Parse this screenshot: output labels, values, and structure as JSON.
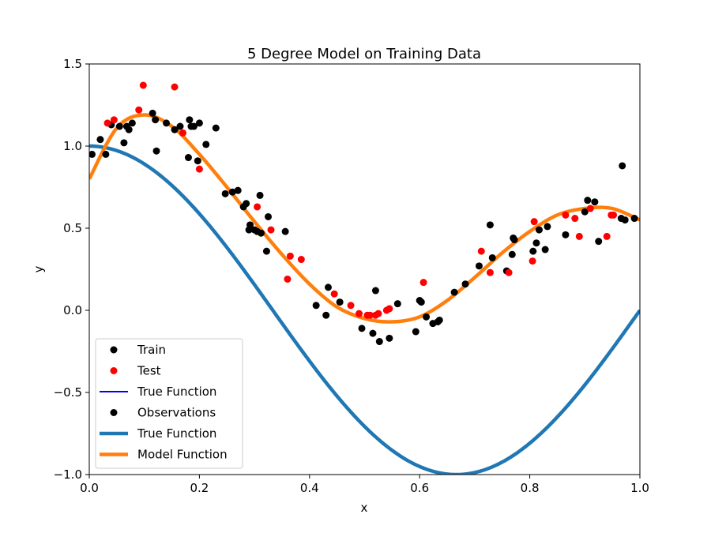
{
  "chart_data": {
    "type": "scatter",
    "title": "5 Degree Model on Training Data",
    "xlabel": "x",
    "ylabel": "y",
    "xlim": [
      0.0,
      1.0
    ],
    "ylim": [
      -1.0,
      1.5
    ],
    "xticks": [
      0.0,
      0.2,
      0.4,
      0.6,
      0.8,
      1.0
    ],
    "xtick_labels": [
      "0.0",
      "0.2",
      "0.4",
      "0.6",
      "0.8",
      "1.0"
    ],
    "yticks": [
      -1.0,
      -0.5,
      0.0,
      0.5,
      1.0,
      1.5
    ],
    "ytick_labels": [
      "−1.0",
      "−0.5",
      "0.0",
      "0.5",
      "1.0",
      "1.5"
    ],
    "grid": false,
    "legend_position": "lower-left",
    "legend": [
      {
        "label": "Train",
        "kind": "marker",
        "color": "#000000"
      },
      {
        "label": "Test",
        "kind": "marker",
        "color": "#ff0000"
      },
      {
        "label": "True Function",
        "kind": "thin-line",
        "color": "#0000ff"
      },
      {
        "label": "Observations",
        "kind": "marker",
        "color": "#000000"
      },
      {
        "label": "True Function",
        "kind": "thick-line",
        "color": "#1f77b4"
      },
      {
        "label": "Model Function",
        "kind": "thick-line",
        "color": "#ff7f0e"
      }
    ],
    "series": [
      {
        "name": "Train",
        "color": "#000000",
        "points": [
          [
            0.005,
            0.95
          ],
          [
            0.02,
            1.04
          ],
          [
            0.03,
            0.95
          ],
          [
            0.04,
            1.13
          ],
          [
            0.055,
            1.12
          ],
          [
            0.063,
            1.02
          ],
          [
            0.068,
            1.12
          ],
          [
            0.072,
            1.1
          ],
          [
            0.078,
            1.14
          ],
          [
            0.115,
            1.2
          ],
          [
            0.12,
            1.16
          ],
          [
            0.122,
            0.97
          ],
          [
            0.14,
            1.14
          ],
          [
            0.155,
            1.1
          ],
          [
            0.165,
            1.12
          ],
          [
            0.18,
            0.93
          ],
          [
            0.182,
            1.16
          ],
          [
            0.185,
            1.12
          ],
          [
            0.19,
            1.12
          ],
          [
            0.197,
            0.91
          ],
          [
            0.2,
            1.14
          ],
          [
            0.212,
            1.01
          ],
          [
            0.23,
            1.11
          ],
          [
            0.247,
            0.71
          ],
          [
            0.26,
            0.72
          ],
          [
            0.27,
            0.73
          ],
          [
            0.28,
            0.63
          ],
          [
            0.285,
            0.65
          ],
          [
            0.29,
            0.49
          ],
          [
            0.292,
            0.52
          ],
          [
            0.3,
            0.49
          ],
          [
            0.305,
            0.48
          ],
          [
            0.31,
            0.7
          ],
          [
            0.312,
            0.47
          ],
          [
            0.322,
            0.36
          ],
          [
            0.325,
            0.57
          ],
          [
            0.356,
            0.48
          ],
          [
            0.412,
            0.03
          ],
          [
            0.43,
            -0.03
          ],
          [
            0.434,
            0.14
          ],
          [
            0.455,
            0.05
          ],
          [
            0.495,
            -0.11
          ],
          [
            0.515,
            -0.14
          ],
          [
            0.52,
            0.12
          ],
          [
            0.527,
            -0.19
          ],
          [
            0.545,
            -0.17
          ],
          [
            0.56,
            0.04
          ],
          [
            0.593,
            -0.13
          ],
          [
            0.6,
            0.06
          ],
          [
            0.603,
            0.05
          ],
          [
            0.612,
            -0.04
          ],
          [
            0.624,
            -0.08
          ],
          [
            0.633,
            -0.07
          ],
          [
            0.636,
            -0.06
          ],
          [
            0.663,
            0.11
          ],
          [
            0.683,
            0.16
          ],
          [
            0.708,
            0.27
          ],
          [
            0.728,
            0.52
          ],
          [
            0.732,
            0.32
          ],
          [
            0.758,
            0.24
          ],
          [
            0.768,
            0.34
          ],
          [
            0.77,
            0.44
          ],
          [
            0.772,
            0.43
          ],
          [
            0.806,
            0.36
          ],
          [
            0.812,
            0.41
          ],
          [
            0.817,
            0.49
          ],
          [
            0.828,
            0.37
          ],
          [
            0.832,
            0.51
          ],
          [
            0.865,
            0.46
          ],
          [
            0.9,
            0.6
          ],
          [
            0.905,
            0.67
          ],
          [
            0.918,
            0.66
          ],
          [
            0.925,
            0.42
          ],
          [
            0.966,
            0.56
          ],
          [
            0.968,
            0.88
          ],
          [
            0.973,
            0.55
          ],
          [
            0.99,
            0.56
          ]
        ]
      },
      {
        "name": "Test",
        "color": "#ff0000",
        "points": [
          [
            0.033,
            1.14
          ],
          [
            0.045,
            1.16
          ],
          [
            0.09,
            1.22
          ],
          [
            0.098,
            1.37
          ],
          [
            0.155,
            1.36
          ],
          [
            0.17,
            1.08
          ],
          [
            0.2,
            0.86
          ],
          [
            0.305,
            0.63
          ],
          [
            0.33,
            0.49
          ],
          [
            0.36,
            0.19
          ],
          [
            0.365,
            0.33
          ],
          [
            0.385,
            0.31
          ],
          [
            0.445,
            0.1
          ],
          [
            0.475,
            0.03
          ],
          [
            0.49,
            -0.02
          ],
          [
            0.505,
            -0.03
          ],
          [
            0.51,
            -0.03
          ],
          [
            0.52,
            -0.03
          ],
          [
            0.525,
            -0.02
          ],
          [
            0.54,
            0.0
          ],
          [
            0.545,
            0.01
          ],
          [
            0.607,
            0.17
          ],
          [
            0.712,
            0.36
          ],
          [
            0.728,
            0.23
          ],
          [
            0.762,
            0.23
          ],
          [
            0.805,
            0.3
          ],
          [
            0.808,
            0.54
          ],
          [
            0.865,
            0.58
          ],
          [
            0.882,
            0.56
          ],
          [
            0.89,
            0.45
          ],
          [
            0.91,
            0.62
          ],
          [
            0.94,
            0.45
          ],
          [
            0.948,
            0.58
          ],
          [
            0.952,
            0.58
          ]
        ]
      },
      {
        "name": "True Function",
        "color": "#1f77b4",
        "function": "cos(1.5*pi*x)",
        "note_hidden": false
      },
      {
        "name": "Model Function",
        "color": "#ff7f0e",
        "x": [
          0.0,
          0.05,
          0.1,
          0.15,
          0.2,
          0.25,
          0.3,
          0.35,
          0.4,
          0.45,
          0.5,
          0.55,
          0.6,
          0.65,
          0.7,
          0.75,
          0.8,
          0.85,
          0.9,
          0.95,
          1.0
        ],
        "y": [
          0.8,
          1.11,
          1.19,
          1.12,
          0.95,
          0.75,
          0.54,
          0.34,
          0.16,
          0.02,
          -0.05,
          -0.07,
          -0.04,
          0.06,
          0.2,
          0.35,
          0.48,
          0.58,
          0.62,
          0.62,
          0.55
        ]
      }
    ]
  }
}
